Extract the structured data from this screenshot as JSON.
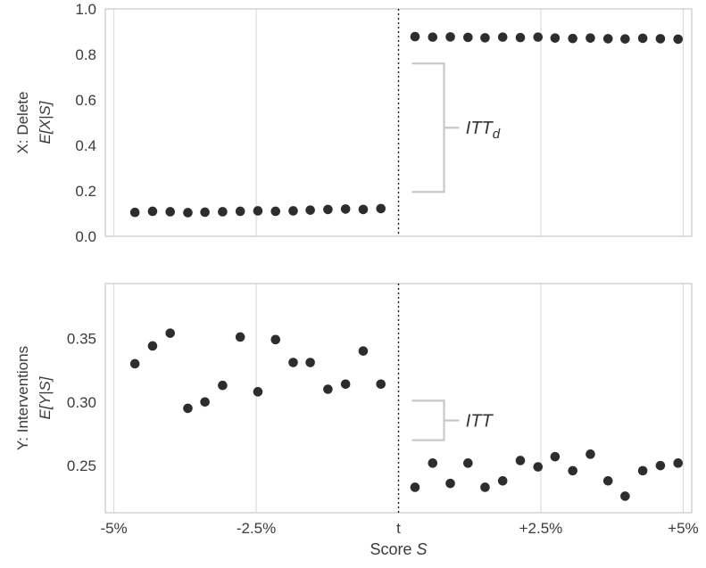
{
  "figure": {
    "xlabel": {
      "prefix": "Score ",
      "var": "S"
    },
    "xlim": [
      -5.15,
      5.15
    ],
    "cutoff": 0,
    "x_ticks": [
      {
        "value": -5,
        "label": "-5%"
      },
      {
        "value": -2.5,
        "label": "-2.5%"
      },
      {
        "value": 0,
        "label": "t"
      },
      {
        "value": 2.5,
        "label": "+2.5%"
      },
      {
        "value": 5,
        "label": "+5%"
      }
    ],
    "colors": {
      "point": "#2d2d2d",
      "grid": "#dcdcdc",
      "border": "#c8c8c8",
      "cutoff": "#1a1a1a",
      "brace": "#c8c8c8",
      "text": "#3b3b3b"
    }
  },
  "chart_data": [
    {
      "type": "scatter",
      "panel": "top",
      "ylabel": [
        "X: Delete",
        "E[X|S]"
      ],
      "ylim": [
        0,
        1
      ],
      "yticks": [
        {
          "value": 0.0,
          "label": "0.0"
        },
        {
          "value": 0.2,
          "label": "0.2"
        },
        {
          "value": 0.4,
          "label": "0.4"
        },
        {
          "value": 0.6,
          "label": "0.6"
        },
        {
          "value": 0.8,
          "label": "0.8"
        },
        {
          "value": 1.0,
          "label": "1.0"
        }
      ],
      "x": [
        -4.63,
        -4.32,
        -4.01,
        -3.7,
        -3.4,
        -3.09,
        -2.78,
        -2.47,
        -2.16,
        -1.85,
        -1.55,
        -1.24,
        -0.93,
        -0.62,
        -0.31,
        0.29,
        0.6,
        0.91,
        1.22,
        1.52,
        1.83,
        2.14,
        2.45,
        2.75,
        3.06,
        3.37,
        3.68,
        3.98,
        4.29,
        4.6,
        4.91
      ],
      "y": [
        0.105,
        0.11,
        0.108,
        0.104,
        0.106,
        0.108,
        0.11,
        0.112,
        0.11,
        0.112,
        0.115,
        0.118,
        0.12,
        0.118,
        0.122,
        0.878,
        0.876,
        0.877,
        0.875,
        0.873,
        0.876,
        0.874,
        0.876,
        0.872,
        0.87,
        0.872,
        0.869,
        0.868,
        0.871,
        0.869,
        0.867
      ],
      "annotation": {
        "label": "ITT",
        "subscript": "d",
        "bracket_x": 0.8,
        "tick_end_x": 0.25,
        "mid_end_x": 1.05,
        "label_x": 1.18,
        "y_top": 0.76,
        "y_bottom": 0.195
      }
    },
    {
      "type": "scatter",
      "panel": "bottom",
      "ylabel": [
        "Y: Interventions",
        "E[Y|S]"
      ],
      "ylim": [
        0.213,
        0.393
      ],
      "yticks": [
        {
          "value": 0.25,
          "label": "0.25"
        },
        {
          "value": 0.3,
          "label": "0.30"
        },
        {
          "value": 0.35,
          "label": "0.35"
        }
      ],
      "x": [
        -4.63,
        -4.32,
        -4.01,
        -3.7,
        -3.4,
        -3.09,
        -2.78,
        -2.47,
        -2.16,
        -1.85,
        -1.55,
        -1.24,
        -0.93,
        -0.62,
        -0.31,
        0.29,
        0.6,
        0.91,
        1.22,
        1.52,
        1.83,
        2.14,
        2.45,
        2.75,
        3.06,
        3.37,
        3.68,
        3.98,
        4.29,
        4.6,
        4.91
      ],
      "y": [
        0.33,
        0.344,
        0.354,
        0.295,
        0.3,
        0.313,
        0.351,
        0.308,
        0.349,
        0.331,
        0.331,
        0.31,
        0.314,
        0.34,
        0.314,
        0.233,
        0.252,
        0.236,
        0.252,
        0.233,
        0.238,
        0.254,
        0.249,
        0.257,
        0.246,
        0.259,
        0.238,
        0.226,
        0.246,
        0.25,
        0.252
      ],
      "annotation": {
        "label": "ITT",
        "subscript": "",
        "bracket_x": 0.8,
        "tick_end_x": 0.25,
        "mid_end_x": 1.05,
        "label_x": 1.18,
        "y_top": 0.301,
        "y_bottom": 0.27
      }
    }
  ]
}
